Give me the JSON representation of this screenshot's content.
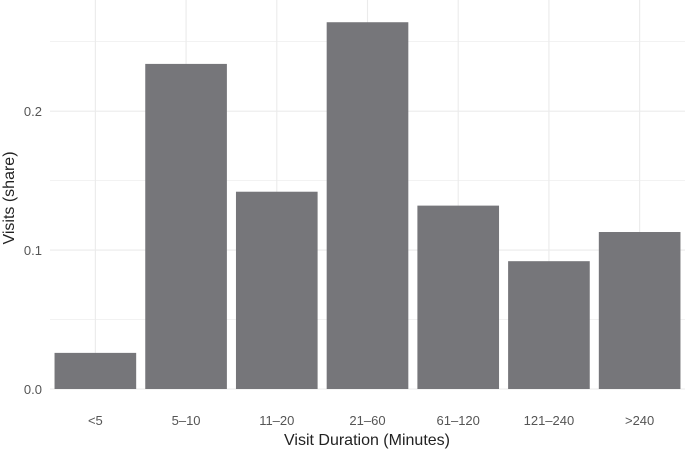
{
  "chart_data": {
    "type": "bar",
    "title": "",
    "xlabel": "Visit Duration (Minutes)",
    "ylabel": "Visits (share)",
    "categories": [
      "<5",
      "5–10",
      "11–20",
      "21–60",
      "61–120",
      "121–240",
      ">240"
    ],
    "values": [
      0.026,
      0.234,
      0.142,
      0.264,
      0.132,
      0.092,
      0.113
    ],
    "ylim": [
      0,
      0.28
    ],
    "yticks": [
      0.0,
      0.1,
      0.2
    ],
    "ytick_labels": [
      "0.0",
      "0.1",
      "0.2"
    ],
    "grid": true,
    "bar_color": "#76767a",
    "grid_color": "#ebebeb"
  }
}
